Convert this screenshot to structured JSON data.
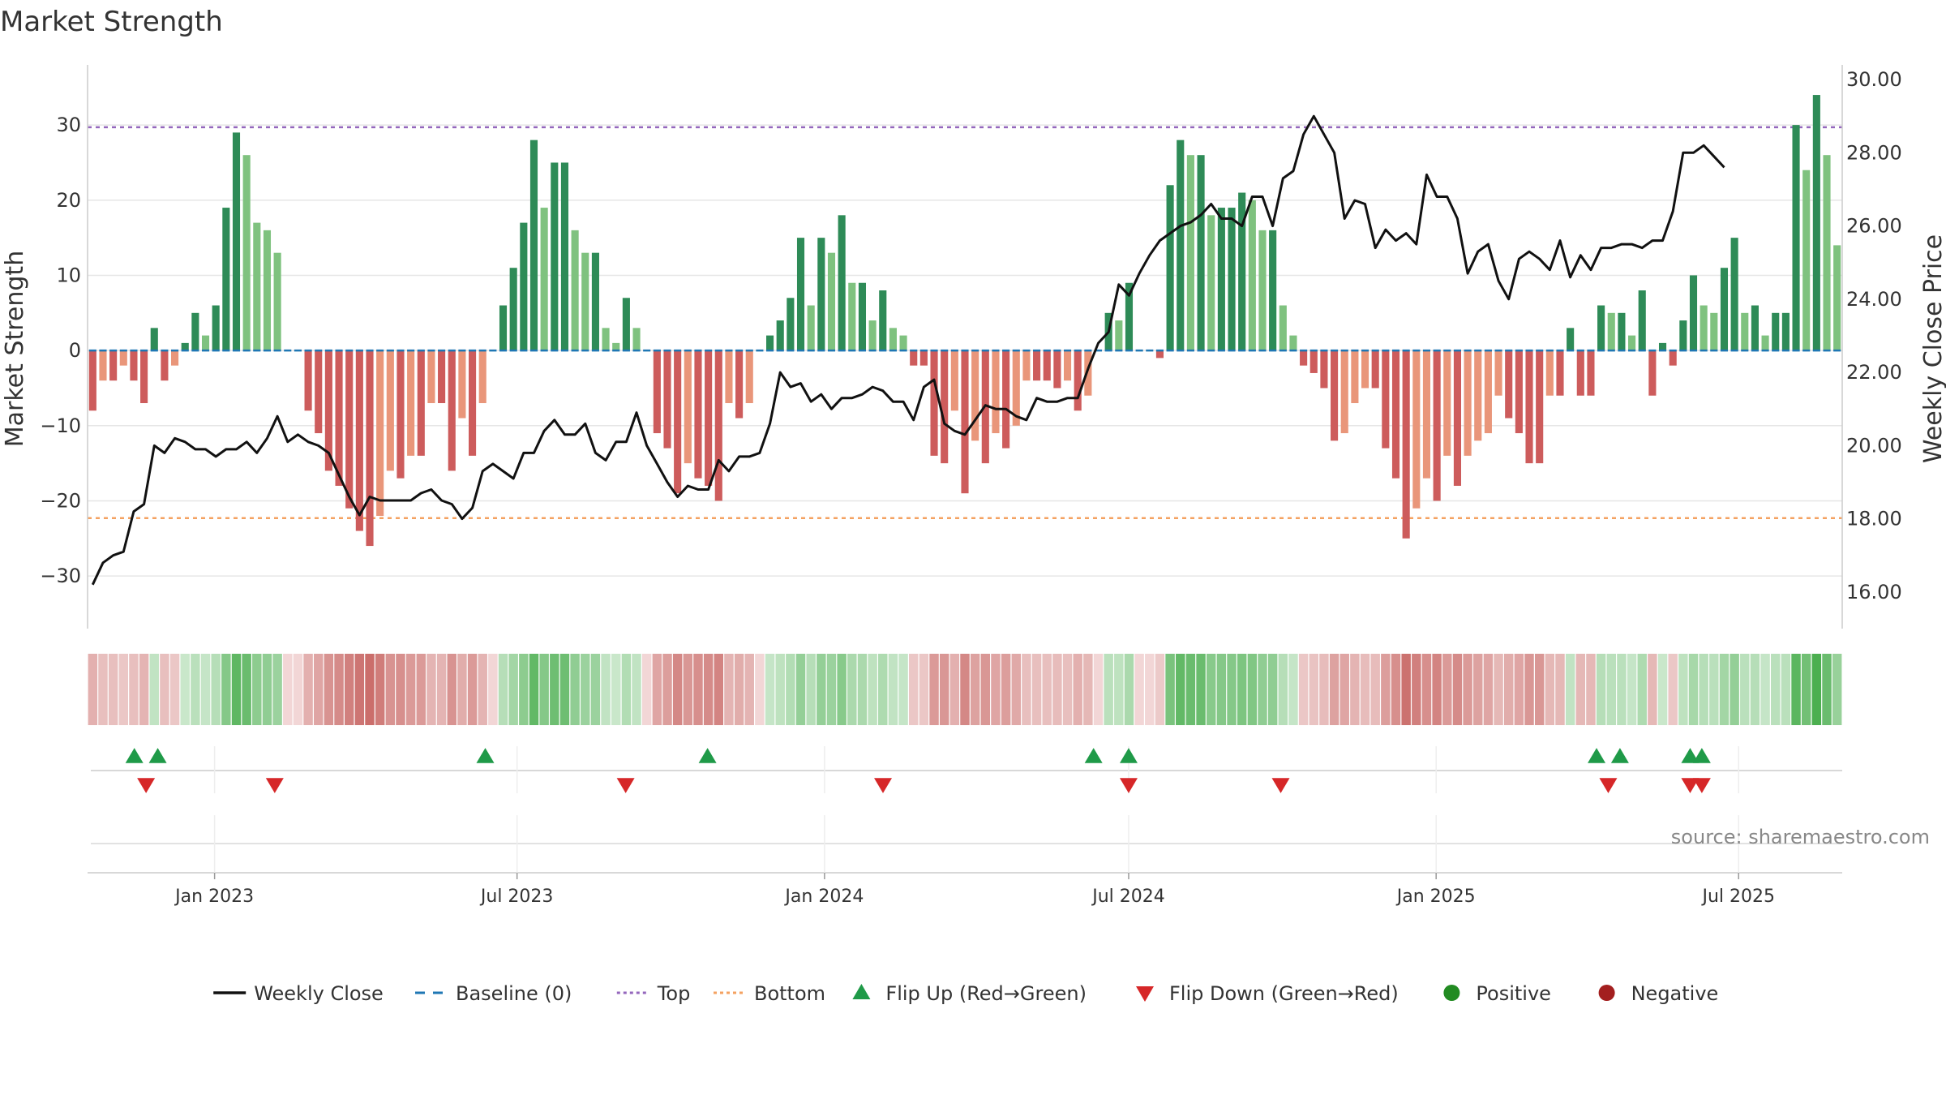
{
  "chart_data": {
    "type": "bar+line",
    "title": "Market Strength",
    "source": "source: sharemaestro.com",
    "y_left": {
      "label": "Market Strength",
      "ylim": [
        -37,
        38
      ],
      "ticks": [
        -30,
        -20,
        -10,
        0,
        10,
        20,
        30
      ],
      "tick_labels": [
        "−30",
        "−20",
        "−10",
        "0",
        "10",
        "20",
        "30"
      ]
    },
    "y_right": {
      "label": "Weekly Close Price",
      "ylim": [
        15.0,
        30.4
      ],
      "ticks": [
        16,
        18,
        20,
        22,
        24,
        26,
        28,
        30
      ],
      "tick_labels": [
        "16.00",
        "18.00",
        "20.00",
        "22.00",
        "24.00",
        "26.00",
        "28.00",
        "30.00"
      ]
    },
    "x_start": "2022-10-17",
    "x_end": "2025-09-01",
    "x_ticks": [
      {
        "date": "2023-01-01",
        "label": "Jan 2023"
      },
      {
        "date": "2023-07-01",
        "label": "Jul 2023"
      },
      {
        "date": "2024-01-01",
        "label": "Jan 2024"
      },
      {
        "date": "2024-07-01",
        "label": "Jul 2024"
      },
      {
        "date": "2025-01-01",
        "label": "Jan 2025"
      },
      {
        "date": "2025-07-01",
        "label": "Jul 2025"
      }
    ],
    "top_level": 29.7,
    "bottom_level": -22.3,
    "strength": [
      -8,
      -4,
      -4,
      -2,
      -4,
      -7,
      3,
      -4,
      -2,
      1,
      5,
      2,
      6,
      19,
      29,
      26,
      17,
      16,
      13,
      0,
      0,
      -8,
      -11,
      -16,
      -18,
      -21,
      -24,
      -26,
      -22,
      -16,
      -17,
      -14,
      -14,
      -7,
      -7,
      -16,
      -9,
      -14,
      -7,
      0,
      6,
      11,
      17,
      28,
      19,
      25,
      25,
      16,
      13,
      13,
      3,
      1,
      7,
      3,
      0,
      -11,
      -13,
      -19,
      -15,
      -17,
      -18,
      -20,
      -7,
      -9,
      -7,
      0,
      2,
      4,
      7,
      15,
      6,
      15,
      13,
      18,
      9,
      9,
      4,
      8,
      3,
      2,
      -2,
      -2,
      -14,
      -15,
      -8,
      -19,
      -12,
      -15,
      -11,
      -13,
      -10,
      -4,
      -4,
      -4,
      -5,
      -4,
      -8,
      -6,
      0,
      5,
      4,
      9,
      0,
      0,
      -1,
      22,
      28,
      26,
      26,
      18,
      19,
      19,
      21,
      20,
      16,
      16,
      6,
      2,
      -2,
      -3,
      -5,
      -12,
      -11,
      -7,
      -5,
      -5,
      -13,
      -17,
      -25,
      -21,
      -17,
      -20,
      -14,
      -18,
      -14,
      -12,
      -11,
      -6,
      -9,
      -11,
      -15,
      -15,
      -6,
      -6,
      3,
      -6,
      -6,
      6,
      5,
      5,
      2,
      8,
      -6,
      1,
      -2,
      4,
      10,
      6,
      5,
      11,
      15,
      5,
      6,
      2,
      5,
      5,
      30,
      24,
      34,
      26,
      14
    ],
    "close": [
      16.2,
      16.8,
      17.0,
      17.1,
      18.2,
      18.4,
      20.0,
      19.8,
      20.2,
      20.1,
      19.9,
      19.9,
      19.7,
      19.9,
      19.9,
      20.1,
      19.8,
      20.2,
      20.8,
      20.1,
      20.3,
      20.1,
      20.0,
      19.8,
      19.2,
      18.6,
      18.1,
      18.6,
      18.5,
      18.5,
      18.5,
      18.5,
      18.7,
      18.8,
      18.5,
      18.4,
      18.0,
      18.3,
      19.3,
      19.5,
      19.3,
      19.1,
      19.8,
      19.8,
      20.4,
      20.7,
      20.3,
      20.3,
      20.6,
      19.8,
      19.6,
      20.1,
      20.1,
      20.9,
      20.0,
      19.5,
      19.0,
      18.6,
      18.9,
      18.8,
      18.8,
      19.6,
      19.3,
      19.7,
      19.7,
      19.8,
      20.6,
      22.0,
      21.6,
      21.7,
      21.2,
      21.4,
      21.0,
      21.3,
      21.3,
      21.4,
      21.6,
      21.5,
      21.2,
      21.2,
      20.7,
      21.6,
      21.8,
      20.6,
      20.4,
      20.3,
      20.7,
      21.1,
      21.0,
      21.0,
      20.8,
      20.7,
      21.3,
      21.2,
      21.2,
      21.3,
      21.3,
      22.1,
      22.8,
      23.1,
      24.4,
      24.1,
      24.7,
      25.2,
      25.6,
      25.8,
      26.0,
      26.1,
      26.3,
      26.6,
      26.2,
      26.2,
      26.0,
      26.8,
      26.8,
      26.0,
      27.3,
      27.5,
      28.5,
      29.0,
      28.5,
      28.0,
      26.2,
      26.7,
      26.6,
      25.4,
      25.9,
      25.6,
      25.8,
      25.5,
      27.4,
      26.8,
      26.8,
      26.2,
      24.7,
      25.3,
      25.5,
      24.5,
      24.0,
      25.1,
      25.3,
      25.1,
      24.8,
      25.6,
      24.6,
      25.2,
      24.8,
      25.4,
      25.4,
      25.5,
      25.5,
      25.4,
      25.6,
      25.6,
      26.4,
      28.0,
      28.0,
      28.2,
      27.9,
      27.6
    ],
    "flip_up": [
      "2022-11-14",
      "2022-11-28",
      "2023-06-12",
      "2023-10-23",
      "2024-06-10",
      "2024-07-01",
      "2025-04-07",
      "2025-04-21",
      "2025-06-02",
      "2025-06-09"
    ],
    "flip_down": [
      "2022-11-21",
      "2023-02-06",
      "2023-09-04",
      "2024-02-05",
      "2024-07-01",
      "2024-09-30",
      "2025-04-14",
      "2025-06-02",
      "2025-06-09"
    ],
    "series_names": [
      "Weekly Close",
      "Baseline (0)",
      "Top",
      "Bottom",
      "Flip Up (Red→Green)",
      "Flip Down (Green→Red)",
      "Positive",
      "Negative"
    ]
  },
  "legend": [
    {
      "label": "Weekly Close",
      "symbol": "line",
      "color": "#111111"
    },
    {
      "label": "Baseline (0)",
      "symbol": "dash",
      "color": "#1f77b4"
    },
    {
      "label": "Top",
      "symbol": "dot",
      "color": "#9467bd"
    },
    {
      "label": "Bottom",
      "symbol": "dot",
      "color": "#f4a261"
    },
    {
      "label": "Flip Up (Red→Green)",
      "symbol": "tri-up",
      "color": "#1f9a48"
    },
    {
      "label": "Flip Down (Green→Red)",
      "symbol": "tri-down",
      "color": "#d62728"
    },
    {
      "label": "Positive",
      "symbol": "circle",
      "color": "#228b22"
    },
    {
      "label": "Negative",
      "symbol": "circle",
      "color": "#a31f1f"
    }
  ],
  "colors": {
    "pos_strong": "#2e8b57",
    "pos_weak": "#7fc27f",
    "neg_strong": "#cd5c5c",
    "neg_weak": "#e9967a",
    "line": "#111111",
    "top": "#9467bd",
    "bottom": "#f4a261",
    "baseline": "#1f77b4",
    "flip_up": "#1f9a48",
    "flip_down": "#d62728"
  }
}
